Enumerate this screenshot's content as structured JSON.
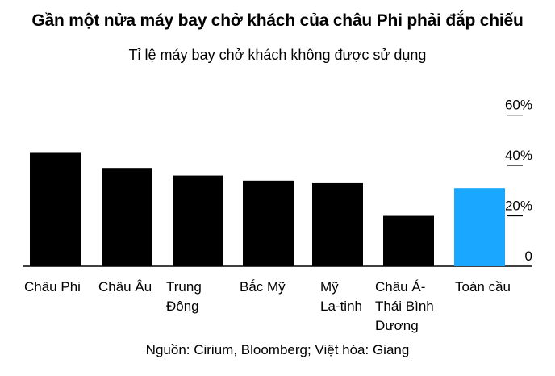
{
  "title": "Gần một nửa máy bay chở khách của châu Phi phải đắp chiếu",
  "subtitle": "Tỉ lệ máy bay chở khách không được sử dụng",
  "source": "Nguồn: Cirium, Bloomberg; Việt hóa: Giang",
  "colors": {
    "bar": "#000000",
    "highlight": "#1aa7ff",
    "axis": "#000000"
  },
  "chart_data": {
    "type": "bar",
    "categories": [
      [
        "Châu Phi"
      ],
      [
        "Châu Âu"
      ],
      [
        "Trung",
        "Đông"
      ],
      [
        "Bắc Mỹ"
      ],
      [
        "Mỹ",
        "La-tinh"
      ],
      [
        "Châu Á-",
        "Thái Bình",
        "Dương"
      ],
      [
        "Toàn cầu"
      ]
    ],
    "values": [
      45,
      39,
      36,
      34,
      33,
      20,
      31
    ],
    "highlight_index": 6,
    "ylim": [
      0,
      65
    ],
    "yticks": [
      0,
      20,
      40,
      60
    ],
    "ytick_labels": [
      "0",
      "20%",
      "40%",
      "60%"
    ],
    "y_axis_position": "right",
    "grid": false
  }
}
